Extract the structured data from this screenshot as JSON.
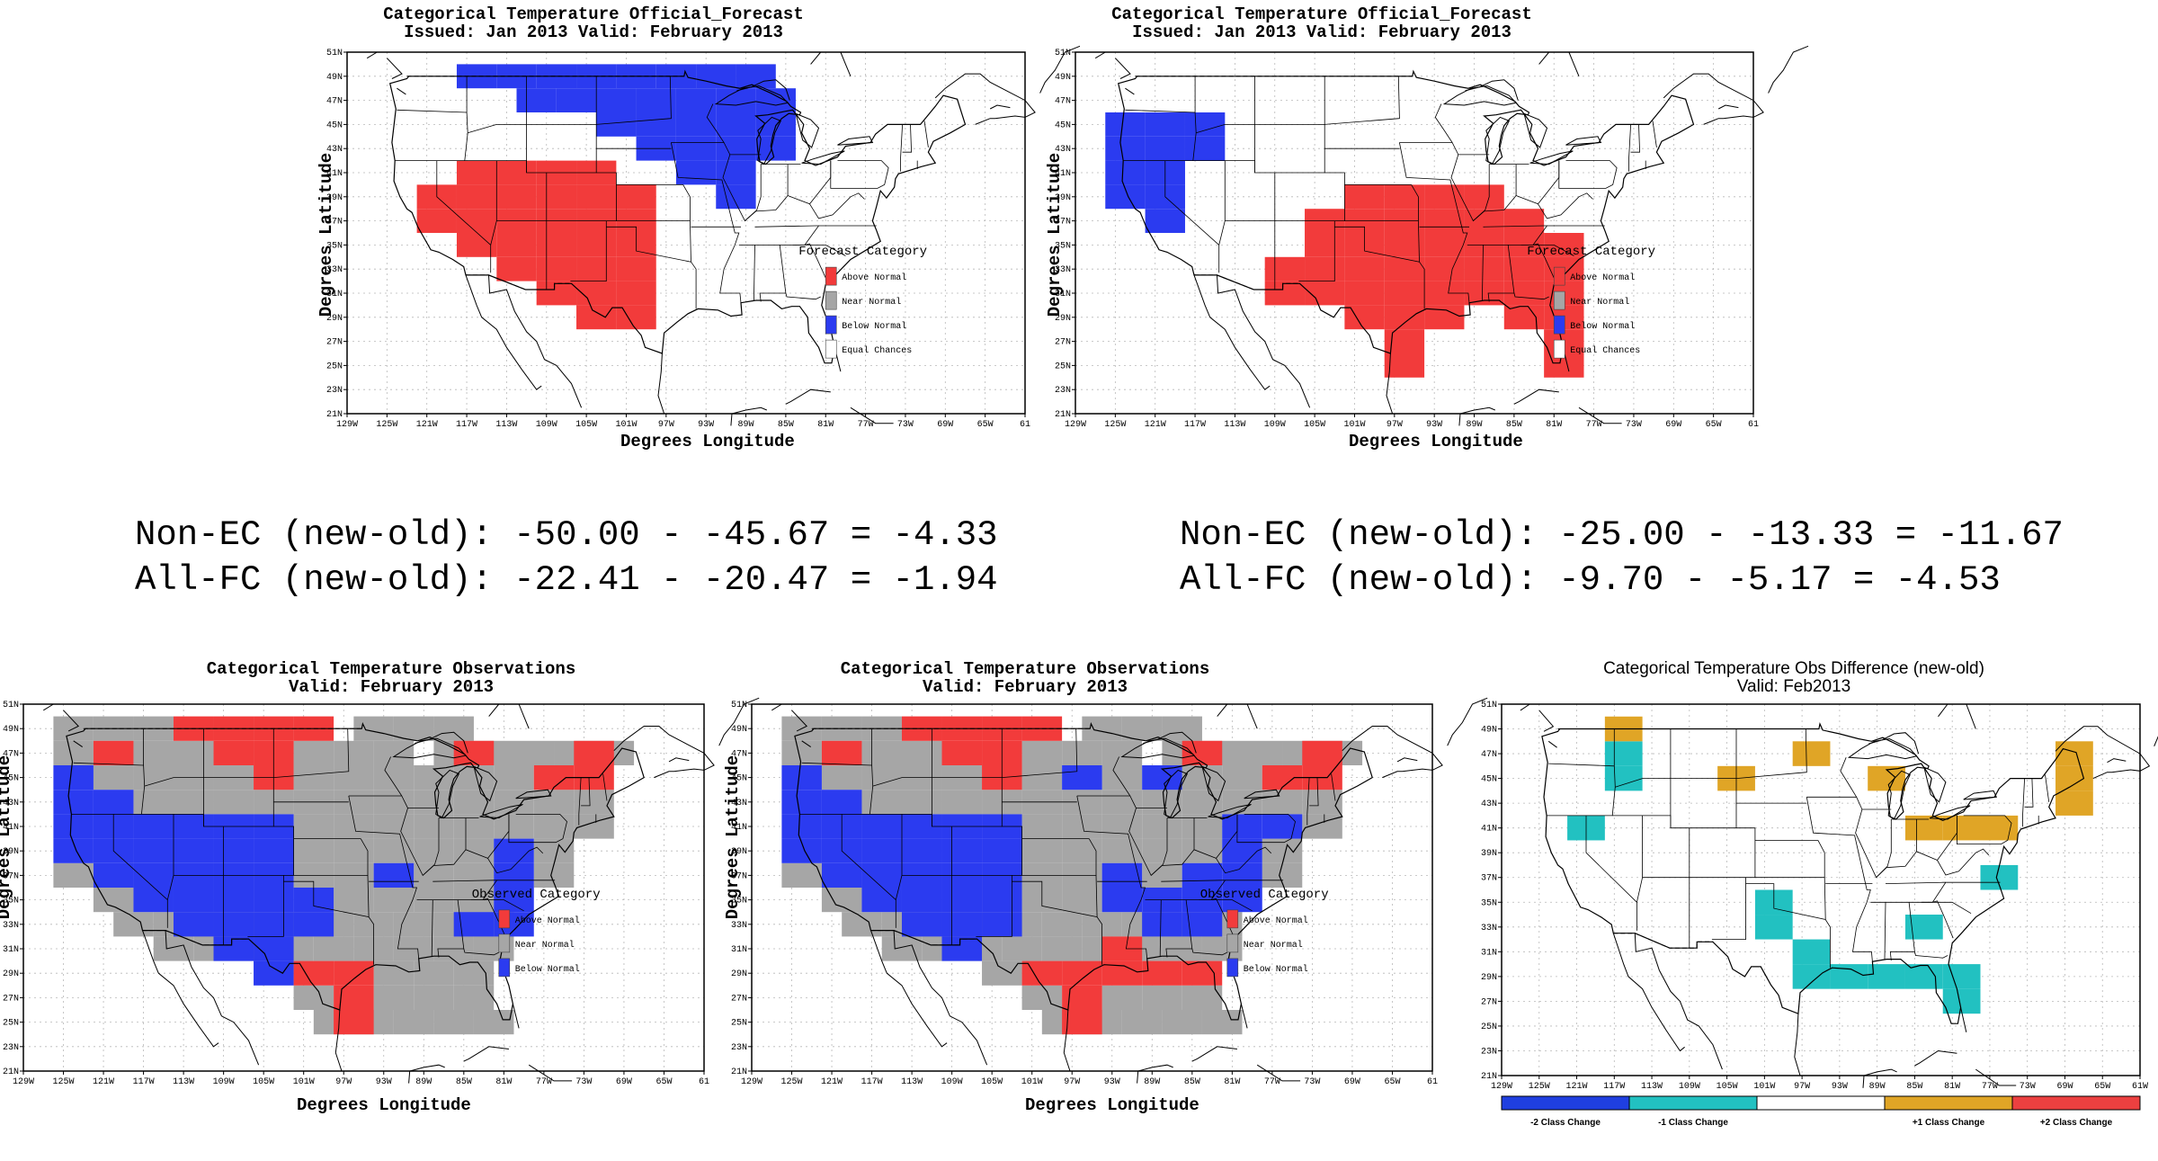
{
  "colors": {
    "above": "#f23b3b",
    "near": "#a6a6a6",
    "below": "#2b3bf0",
    "equal": "#ffffff",
    "minus2": "#1f3fe0",
    "minus1": "#22c1c1",
    "zero": "#ffffff",
    "plus1": "#e0a526",
    "plus2": "#ec4040"
  },
  "axes": {
    "ticks_x": [
      "129W",
      "125W",
      "121W",
      "117W",
      "113W",
      "109W",
      "105W",
      "101W",
      "97W",
      "93W",
      "89W",
      "85W",
      "81W",
      "77W",
      "73W",
      "69W",
      "65W",
      "61"
    ],
    "ticks_x_full": [
      "129W",
      "125W",
      "121W",
      "117W",
      "113W",
      "109W",
      "105W",
      "101W",
      "97W",
      "93W",
      "89W",
      "85W",
      "81W",
      "77W",
      "73W",
      "69W",
      "65W",
      "61W"
    ],
    "ticks_y": [
      "51N",
      "49N",
      "47N",
      "45N",
      "43N",
      "41N",
      "39N",
      "37N",
      "35N",
      "33N",
      "31N",
      "29N",
      "27N",
      "25N",
      "23N",
      "21N"
    ],
    "xlabel": "Degrees Longitude",
    "ylabel": "Degrees Latitude"
  },
  "forecast_legend": {
    "title": "Forecast Category",
    "items": [
      "Above Normal",
      "Near Normal",
      "Below Normal",
      "Equal Chances"
    ]
  },
  "obs_legend": {
    "title": "Observed Category",
    "items": [
      "Above Normal",
      "Near Normal",
      "Below Normal"
    ]
  },
  "colorbar": {
    "labels": [
      "-2 Class Change",
      "-1 Class Change",
      "+1 Class Change",
      "+2 Class Change"
    ]
  },
  "panels": [
    {
      "id": "forecast-old",
      "title1": "Categorical Temperature Official_Forecast",
      "title2": "Issued: Jan 2013 Valid: February 2013"
    },
    {
      "id": "forecast-new",
      "title1": "Categorical Temperature Official_Forecast",
      "title2": "Issued: Jan 2013 Valid: February 2013"
    },
    {
      "id": "obs-old",
      "title1": "Categorical Temperature Observations",
      "title2": "Valid: February 2013"
    },
    {
      "id": "obs-new",
      "title1": "Categorical Temperature Observations",
      "title2": "Valid: February 2013"
    },
    {
      "id": "obs-diff",
      "title1": "Categorical Temperature Obs Difference (new-old)",
      "title2": "Valid: Feb2013"
    }
  ],
  "scores": {
    "left": {
      "non_ec": "Non-EC (new-old): -50.00 - -45.67 = -4.33",
      "all_fc": "All-FC (new-old): -22.41 - -20.47 = -1.94"
    },
    "right": {
      "non_ec": "Non-EC (new-old): -25.00 - -13.33 = -11.67",
      "all_fc": "All-FC (new-old): -9.70 - -5.17 = -4.53"
    }
  },
  "map_cells": {
    "forecast_old": {
      "below": [
        [
          -116,
          49
        ],
        [
          -112,
          49
        ],
        [
          -108,
          49
        ],
        [
          -104,
          49
        ],
        [
          -100,
          49
        ],
        [
          -96,
          49
        ],
        [
          -92,
          49
        ],
        [
          -88,
          49
        ],
        [
          -110,
          47
        ],
        [
          -106,
          47
        ],
        [
          -102,
          47
        ],
        [
          -98,
          47
        ],
        [
          -94,
          47
        ],
        [
          -90,
          47
        ],
        [
          -86,
          47
        ],
        [
          -102,
          45
        ],
        [
          -98,
          45
        ],
        [
          -94,
          45
        ],
        [
          -90,
          45
        ],
        [
          -86,
          45
        ],
        [
          -98,
          43
        ],
        [
          -94,
          43
        ],
        [
          -90,
          43
        ],
        [
          -86,
          43
        ],
        [
          -94,
          41
        ],
        [
          -90,
          41
        ],
        [
          -90,
          39
        ]
      ],
      "above": [
        [
          -116,
          41
        ],
        [
          -112,
          41
        ],
        [
          -108,
          41
        ],
        [
          -104,
          41
        ],
        [
          -120,
          39
        ],
        [
          -116,
          39
        ],
        [
          -112,
          39
        ],
        [
          -108,
          39
        ],
        [
          -104,
          39
        ],
        [
          -100,
          39
        ],
        [
          -120,
          37
        ],
        [
          -116,
          37
        ],
        [
          -112,
          37
        ],
        [
          -108,
          37
        ],
        [
          -104,
          37
        ],
        [
          -100,
          37
        ],
        [
          -116,
          35
        ],
        [
          -112,
          35
        ],
        [
          -108,
          35
        ],
        [
          -104,
          35
        ],
        [
          -100,
          35
        ],
        [
          -112,
          33
        ],
        [
          -108,
          33
        ],
        [
          -104,
          33
        ],
        [
          -100,
          33
        ],
        [
          -108,
          31
        ],
        [
          -104,
          31
        ],
        [
          -100,
          31
        ],
        [
          -104,
          29
        ],
        [
          -100,
          29
        ]
      ]
    },
    "forecast_new": {
      "below": [
        [
          -124,
          45
        ],
        [
          -120,
          45
        ],
        [
          -116,
          45
        ],
        [
          -124,
          43
        ],
        [
          -120,
          43
        ],
        [
          -116,
          43
        ],
        [
          -124,
          41
        ],
        [
          -120,
          41
        ],
        [
          -124,
          39
        ],
        [
          -120,
          39
        ],
        [
          -120,
          37
        ]
      ],
      "above": [
        [
          -100,
          39
        ],
        [
          -96,
          39
        ],
        [
          -92,
          39
        ],
        [
          -88,
          39
        ],
        [
          -104,
          37
        ],
        [
          -100,
          37
        ],
        [
          -96,
          37
        ],
        [
          -92,
          37
        ],
        [
          -88,
          37
        ],
        [
          -84,
          37
        ],
        [
          -104,
          35
        ],
        [
          -100,
          35
        ],
        [
          -96,
          35
        ],
        [
          -92,
          35
        ],
        [
          -88,
          35
        ],
        [
          -84,
          35
        ],
        [
          -80,
          35
        ],
        [
          -108,
          33
        ],
        [
          -104,
          33
        ],
        [
          -100,
          33
        ],
        [
          -96,
          33
        ],
        [
          -92,
          33
        ],
        [
          -88,
          33
        ],
        [
          -84,
          33
        ],
        [
          -80,
          33
        ],
        [
          -108,
          31
        ],
        [
          -104,
          31
        ],
        [
          -100,
          31
        ],
        [
          -96,
          31
        ],
        [
          -92,
          31
        ],
        [
          -88,
          31
        ],
        [
          -84,
          31
        ],
        [
          -80,
          31
        ],
        [
          -100,
          29
        ],
        [
          -96,
          29
        ],
        [
          -92,
          29
        ],
        [
          -84,
          29
        ],
        [
          -80,
          29
        ],
        [
          -96,
          27
        ],
        [
          -80,
          27
        ],
        [
          -96,
          25
        ],
        [
          -80,
          25
        ]
      ]
    },
    "obs_old": {
      "above": [
        [
          -112,
          49
        ],
        [
          -108,
          49
        ],
        [
          -104,
          49
        ],
        [
          -100,
          49
        ],
        [
          -108,
          47
        ],
        [
          -104,
          47
        ],
        [
          -84,
          47
        ],
        [
          -72,
          47
        ],
        [
          -120,
          47
        ],
        [
          -104,
          45
        ],
        [
          -76,
          45
        ],
        [
          -72,
          45
        ],
        [
          -100,
          29
        ],
        [
          -96,
          29
        ],
        [
          -96,
          27
        ],
        [
          -96,
          25
        ]
      ],
      "below": [
        [
          -124,
          45
        ],
        [
          -124,
          43
        ],
        [
          -120,
          43
        ],
        [
          -124,
          41
        ],
        [
          -120,
          41
        ],
        [
          -116,
          41
        ],
        [
          -112,
          41
        ],
        [
          -108,
          41
        ],
        [
          -104,
          41
        ],
        [
          -124,
          39
        ],
        [
          -120,
          39
        ],
        [
          -116,
          39
        ],
        [
          -112,
          39
        ],
        [
          -108,
          39
        ],
        [
          -104,
          39
        ],
        [
          -80,
          39
        ],
        [
          -120,
          37
        ],
        [
          -116,
          37
        ],
        [
          -112,
          37
        ],
        [
          -108,
          37
        ],
        [
          -104,
          37
        ],
        [
          -92,
          37
        ],
        [
          -80,
          37
        ],
        [
          -116,
          35
        ],
        [
          -112,
          35
        ],
        [
          -108,
          35
        ],
        [
          -104,
          35
        ],
        [
          -100,
          35
        ],
        [
          -80,
          35
        ],
        [
          -112,
          33
        ],
        [
          -108,
          33
        ],
        [
          -104,
          33
        ],
        [
          -100,
          33
        ],
        [
          -84,
          33
        ],
        [
          -80,
          33
        ],
        [
          -108,
          31
        ],
        [
          -104,
          31
        ],
        [
          -104,
          29
        ]
      ]
    },
    "obs_new": {
      "above": [
        [
          -112,
          49
        ],
        [
          -108,
          49
        ],
        [
          -104,
          49
        ],
        [
          -100,
          49
        ],
        [
          -108,
          47
        ],
        [
          -104,
          47
        ],
        [
          -84,
          47
        ],
        [
          -72,
          47
        ],
        [
          -120,
          47
        ],
        [
          -104,
          45
        ],
        [
          -76,
          45
        ],
        [
          -72,
          45
        ],
        [
          -100,
          29
        ],
        [
          -96,
          29
        ],
        [
          -92,
          29
        ],
        [
          -88,
          29
        ],
        [
          -96,
          27
        ],
        [
          -84,
          29
        ],
        [
          -96,
          25
        ],
        [
          -92,
          31
        ]
      ],
      "below": [
        [
          -124,
          45
        ],
        [
          -124,
          43
        ],
        [
          -120,
          43
        ],
        [
          -124,
          41
        ],
        [
          -120,
          41
        ],
        [
          -116,
          41
        ],
        [
          -112,
          41
        ],
        [
          -108,
          41
        ],
        [
          -104,
          41
        ],
        [
          -124,
          39
        ],
        [
          -120,
          39
        ],
        [
          -116,
          39
        ],
        [
          -112,
          39
        ],
        [
          -108,
          39
        ],
        [
          -104,
          39
        ],
        [
          -120,
          37
        ],
        [
          -116,
          37
        ],
        [
          -112,
          37
        ],
        [
          -108,
          37
        ],
        [
          -104,
          37
        ],
        [
          -116,
          35
        ],
        [
          -112,
          35
        ],
        [
          -108,
          35
        ],
        [
          -104,
          35
        ],
        [
          -112,
          33
        ],
        [
          -108,
          33
        ],
        [
          -104,
          33
        ],
        [
          -108,
          31
        ],
        [
          -96,
          45
        ],
        [
          -88,
          45
        ],
        [
          -80,
          41
        ],
        [
          -76,
          41
        ],
        [
          -80,
          39
        ],
        [
          -84,
          37
        ],
        [
          -80,
          37
        ],
        [
          -88,
          35
        ],
        [
          -84,
          35
        ],
        [
          -80,
          35
        ],
        [
          -92,
          37
        ],
        [
          -92,
          35
        ],
        [
          -88,
          33
        ],
        [
          -84,
          33
        ]
      ]
    },
    "obs_diff": {
      "minus1": [
        [
          -116,
          47
        ],
        [
          -116,
          45
        ],
        [
          -120,
          41
        ],
        [
          -100,
          35
        ],
        [
          -100,
          33
        ],
        [
          -96,
          31
        ],
        [
          -92,
          29
        ],
        [
          -88,
          29
        ],
        [
          -84,
          29
        ],
        [
          -96,
          29
        ],
        [
          -84,
          33
        ],
        [
          -80,
          29
        ],
        [
          -80,
          27
        ],
        [
          -76,
          37
        ]
      ],
      "plus1": [
        [
          -116,
          49
        ],
        [
          -104,
          45
        ],
        [
          -96,
          47
        ],
        [
          -88,
          45
        ],
        [
          -84,
          41
        ],
        [
          -80,
          41
        ],
        [
          -76,
          41
        ],
        [
          -68,
          47
        ],
        [
          -68,
          45
        ],
        [
          -68,
          43
        ]
      ]
    }
  }
}
